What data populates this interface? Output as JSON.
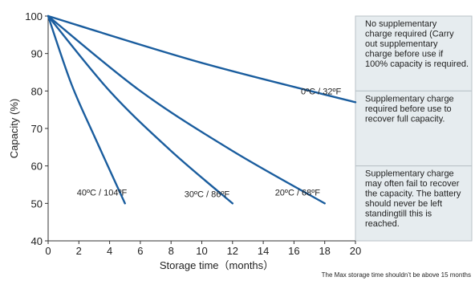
{
  "chart_data": {
    "type": "line",
    "xlabel": "Storage time（months）",
    "ylabel": "Capacity (%)",
    "xlim": [
      0,
      20
    ],
    "ylim": [
      40,
      100
    ],
    "xticks": [
      0,
      2,
      4,
      6,
      8,
      10,
      12,
      14,
      16,
      18,
      20
    ],
    "yticks": [
      40,
      50,
      60,
      70,
      80,
      90,
      100
    ],
    "grid": false,
    "line_color": "#1a5d9e",
    "series": [
      {
        "name": "0ºC / 32ºF",
        "x": [
          0,
          10,
          20
        ],
        "y": [
          100,
          87.5,
          77
        ]
      },
      {
        "name": "20ºC / 68ºF",
        "x": [
          0,
          6,
          12,
          18
        ],
        "y": [
          100,
          80,
          64,
          50
        ]
      },
      {
        "name": "30ºC / 86ºF",
        "x": [
          0,
          4,
          8,
          12
        ],
        "y": [
          100,
          80,
          64,
          50
        ]
      },
      {
        "name": "40ºC / 104ºF",
        "x": [
          0,
          1.5,
          3,
          5
        ],
        "y": [
          100,
          82,
          68,
          50
        ]
      }
    ],
    "zones": [
      {
        "ymin": 80,
        "ymax": 100,
        "color": "#e6ecef",
        "lines": [
          "No supplementary",
          "charge required (Carry",
          "out supplementary",
          "charge before use if",
          "100% capacity is required."
        ]
      },
      {
        "ymin": 60,
        "ymax": 80,
        "color": "#e6ecef",
        "lines": [
          "Supplementary charge",
          "required before use to",
          "recover full capacity."
        ]
      },
      {
        "ymin": 40,
        "ymax": 60,
        "color": "#e6ecef",
        "lines": [
          "Supplementary charge",
          "may often fail to recover",
          "the capacity. The battery",
          "should never be left",
          "standingtill this is",
          "reached."
        ]
      }
    ],
    "note": "The Max storage time shouldn’t be above 15 months"
  }
}
